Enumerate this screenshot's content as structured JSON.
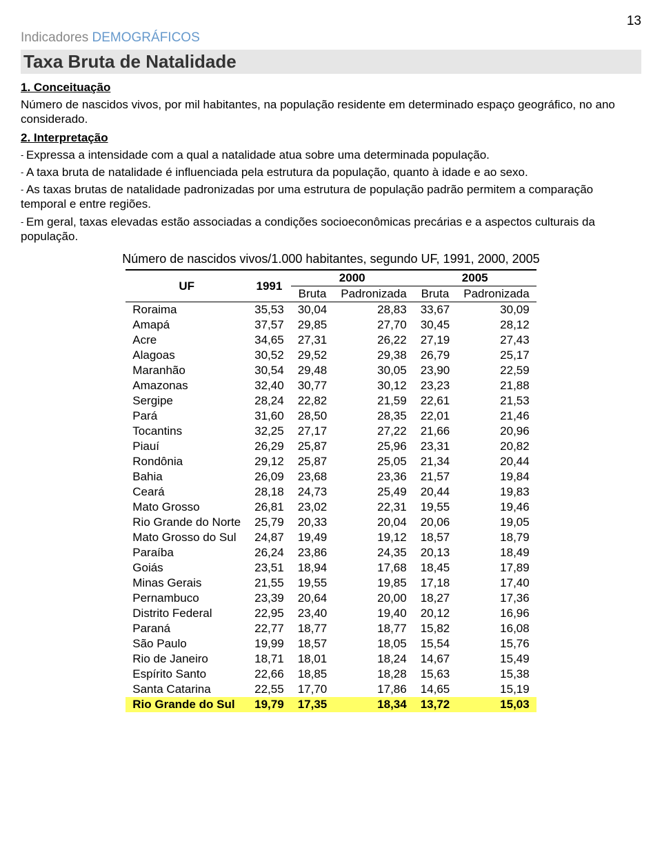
{
  "page_number": "13",
  "breadcrumb": {
    "first": "Indicadores",
    "second": "DEMOGRÁFICOS"
  },
  "title": "Taxa Bruta de Natalidade",
  "section1": {
    "heading": "1. Conceituação",
    "text": "Número de nascidos vivos, por mil habitantes, na população residente em determinado espaço geográfico, no ano considerado."
  },
  "section2": {
    "heading": "2. Interpretação",
    "bullets": [
      "Expressa a intensidade com a qual a natalidade atua sobre uma determinada população.",
      "A taxa bruta de natalidade é influenciada pela estrutura da população, quanto à idade e ao sexo.",
      "As taxas brutas de natalidade padronizadas por uma estrutura de população padrão permitem a comparação temporal e entre regiões.",
      "Em geral, taxas elevadas estão associadas a condições socioeconômicas precárias e a aspectos culturais da população."
    ]
  },
  "table": {
    "title": "Número de nascidos vivos/1.000 habitantes, segundo UF, 1991, 2000, 2005",
    "header": {
      "uf": "UF",
      "y1991": "1991",
      "y2000": "2000",
      "y2005": "2005",
      "bruta": "Bruta",
      "padron": "Padronizada"
    },
    "rows": [
      {
        "uf": "Roraima",
        "c1": "35,53",
        "c2": "30,04",
        "c3": "28,83",
        "c4": "33,67",
        "c5": "30,09"
      },
      {
        "uf": "Amapá",
        "c1": "37,57",
        "c2": "29,85",
        "c3": "27,70",
        "c4": "30,45",
        "c5": "28,12"
      },
      {
        "uf": "Acre",
        "c1": "34,65",
        "c2": "27,31",
        "c3": "26,22",
        "c4": "27,19",
        "c5": "27,43"
      },
      {
        "uf": "Alagoas",
        "c1": "30,52",
        "c2": "29,52",
        "c3": "29,38",
        "c4": "26,79",
        "c5": "25,17"
      },
      {
        "uf": "Maranhão",
        "c1": "30,54",
        "c2": "29,48",
        "c3": "30,05",
        "c4": "23,90",
        "c5": "22,59"
      },
      {
        "uf": "Amazonas",
        "c1": "32,40",
        "c2": "30,77",
        "c3": "30,12",
        "c4": "23,23",
        "c5": "21,88"
      },
      {
        "uf": "Sergipe",
        "c1": "28,24",
        "c2": "22,82",
        "c3": "21,59",
        "c4": "22,61",
        "c5": "21,53"
      },
      {
        "uf": "Pará",
        "c1": "31,60",
        "c2": "28,50",
        "c3": "28,35",
        "c4": "22,01",
        "c5": "21,46"
      },
      {
        "uf": "Tocantins",
        "c1": "32,25",
        "c2": "27,17",
        "c3": "27,22",
        "c4": "21,66",
        "c5": "20,96"
      },
      {
        "uf": "Piauí",
        "c1": "26,29",
        "c2": "25,87",
        "c3": "25,96",
        "c4": "23,31",
        "c5": "20,82"
      },
      {
        "uf": "Rondônia",
        "c1": "29,12",
        "c2": "25,87",
        "c3": "25,05",
        "c4": "21,34",
        "c5": "20,44"
      },
      {
        "uf": "Bahia",
        "c1": "26,09",
        "c2": "23,68",
        "c3": "23,36",
        "c4": "21,57",
        "c5": "19,84"
      },
      {
        "uf": "Ceará",
        "c1": "28,18",
        "c2": "24,73",
        "c3": "25,49",
        "c4": "20,44",
        "c5": "19,83"
      },
      {
        "uf": "Mato Grosso",
        "c1": "26,81",
        "c2": "23,02",
        "c3": "22,31",
        "c4": "19,55",
        "c5": "19,46"
      },
      {
        "uf": "Rio Grande do Norte",
        "c1": "25,79",
        "c2": "20,33",
        "c3": "20,04",
        "c4": "20,06",
        "c5": "19,05"
      },
      {
        "uf": "Mato Grosso do Sul",
        "c1": "24,87",
        "c2": "19,49",
        "c3": "19,12",
        "c4": "18,57",
        "c5": "18,79"
      },
      {
        "uf": "Paraíba",
        "c1": "26,24",
        "c2": "23,86",
        "c3": "24,35",
        "c4": "20,13",
        "c5": "18,49"
      },
      {
        "uf": "Goiás",
        "c1": "23,51",
        "c2": "18,94",
        "c3": "17,68",
        "c4": "18,45",
        "c5": "17,89"
      },
      {
        "uf": "Minas Gerais",
        "c1": "21,55",
        "c2": "19,55",
        "c3": "19,85",
        "c4": "17,18",
        "c5": "17,40"
      },
      {
        "uf": "Pernambuco",
        "c1": "23,39",
        "c2": "20,64",
        "c3": "20,00",
        "c4": "18,27",
        "c5": "17,36"
      },
      {
        "uf": "Distrito Federal",
        "c1": "22,95",
        "c2": "23,40",
        "c3": "19,40",
        "c4": "20,12",
        "c5": "16,96"
      },
      {
        "uf": "Paraná",
        "c1": "22,77",
        "c2": "18,77",
        "c3": "18,77",
        "c4": "15,82",
        "c5": "16,08"
      },
      {
        "uf": "São Paulo",
        "c1": "19,99",
        "c2": "18,57",
        "c3": "18,05",
        "c4": "15,54",
        "c5": "15,76"
      },
      {
        "uf": "Rio de Janeiro",
        "c1": "18,71",
        "c2": "18,01",
        "c3": "18,24",
        "c4": "14,67",
        "c5": "15,49"
      },
      {
        "uf": "Espírito Santo",
        "c1": "22,66",
        "c2": "18,85",
        "c3": "18,28",
        "c4": "15,63",
        "c5": "15,38"
      },
      {
        "uf": "Santa Catarina",
        "c1": "22,55",
        "c2": "17,70",
        "c3": "17,86",
        "c4": "14,65",
        "c5": "15,19"
      },
      {
        "uf": "Rio Grande do Sul",
        "c1": "19,79",
        "c2": "17,35",
        "c3": "18,34",
        "c4": "13,72",
        "c5": "15,03",
        "highlight": true
      }
    ]
  },
  "colors": {
    "breadcrumb_first": "#888888",
    "breadcrumb_second": "#6699cc",
    "title_bg": "#e6e6e6",
    "highlight_bg": "#ffff66"
  }
}
